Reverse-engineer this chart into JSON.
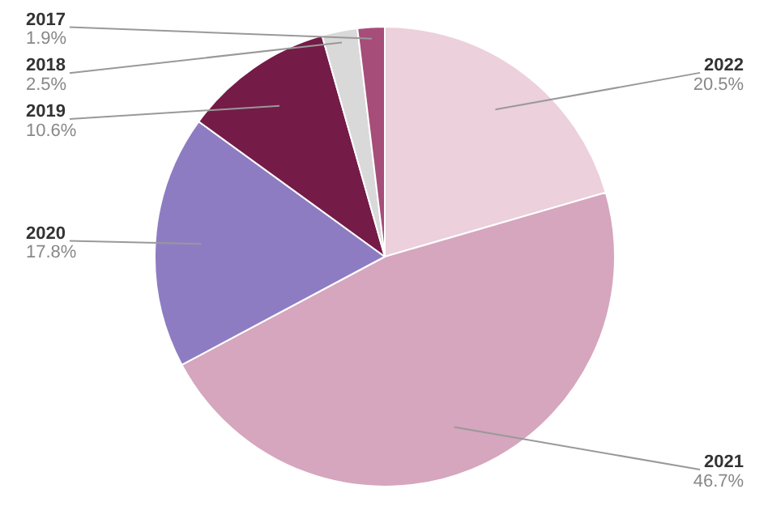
{
  "chart_data": {
    "type": "pie",
    "categories": [
      "2022",
      "2021",
      "2020",
      "2019",
      "2018",
      "2017"
    ],
    "values": [
      20.5,
      46.7,
      17.8,
      10.6,
      2.5,
      1.9
    ],
    "colors": [
      "#ecd0dc",
      "#d5a6bd",
      "#8e7cc3",
      "#741b47",
      "#d9d9d9",
      "#a64d79"
    ],
    "value_labels": [
      "20.5%",
      "46.7%",
      "17.8%",
      "10.6%",
      "2.5%",
      "1.9%"
    ],
    "legend": false
  }
}
